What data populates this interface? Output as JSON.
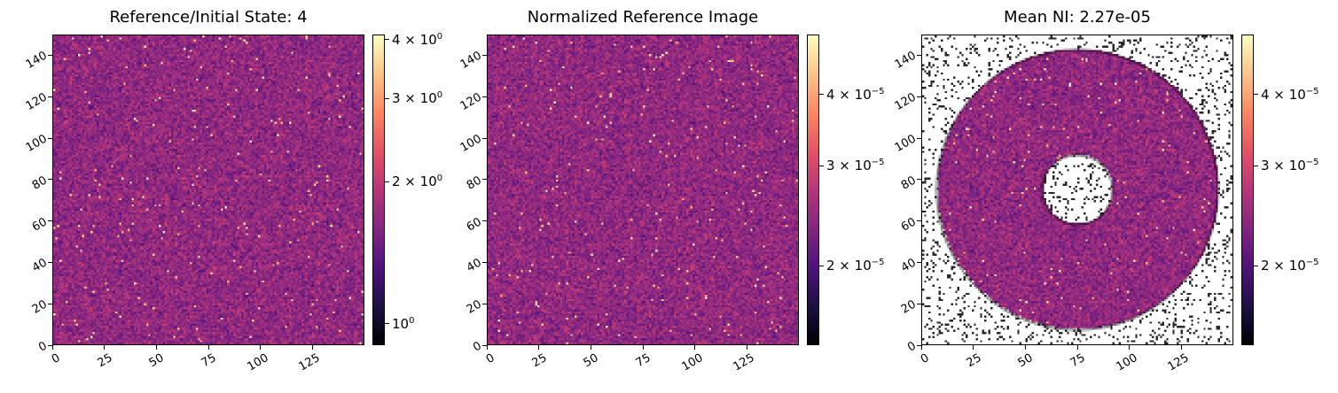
{
  "chart_data": [
    {
      "type": "heatmap",
      "title": "Reference/Initial State: 4",
      "x_ticks": [
        "0",
        "25",
        "50",
        "75",
        "100",
        "125"
      ],
      "y_ticks": [
        "0",
        "20",
        "40",
        "60",
        "80",
        "100",
        "120",
        "140"
      ],
      "xlim": [
        0,
        150
      ],
      "ylim": [
        0,
        150
      ],
      "colormap": "magma",
      "color_scale": "log",
      "colorbar": {
        "range": [
          0.9,
          4.1
        ],
        "ticks": [
          {
            "value": 1,
            "mantissa": "",
            "base": "10",
            "exp": "0"
          },
          {
            "value": 2,
            "mantissa": "2 × ",
            "base": "10",
            "exp": "0"
          },
          {
            "value": 3,
            "mantissa": "3 × ",
            "base": "10",
            "exp": "0"
          },
          {
            "value": 4,
            "mantissa": "4 × ",
            "base": "10",
            "exp": "0"
          }
        ]
      },
      "mask": "none"
    },
    {
      "type": "heatmap",
      "title": "Normalized Reference Image",
      "x_ticks": [
        "0",
        "25",
        "50",
        "75",
        "100",
        "125"
      ],
      "y_ticks": [
        "0",
        "20",
        "40",
        "60",
        "80",
        "100",
        "120",
        "140"
      ],
      "xlim": [
        0,
        150
      ],
      "ylim": [
        0,
        150
      ],
      "colormap": "magma",
      "color_scale": "log",
      "colorbar": {
        "range": [
          1.45e-05,
          5.1e-05
        ],
        "ticks": [
          {
            "value": 2e-05,
            "mantissa": "2 × ",
            "base": "10",
            "exp": "−5"
          },
          {
            "value": 3e-05,
            "mantissa": "3 × ",
            "base": "10",
            "exp": "−5"
          },
          {
            "value": 4e-05,
            "mantissa": "4 × ",
            "base": "10",
            "exp": "−5"
          }
        ]
      },
      "mask": "none"
    },
    {
      "type": "heatmap",
      "title": "Mean NI: 2.27e-05",
      "x_ticks": [
        "0",
        "25",
        "50",
        "75",
        "100",
        "125"
      ],
      "y_ticks": [
        "0",
        "20",
        "40",
        "60",
        "80",
        "100",
        "120",
        "140"
      ],
      "xlim": [
        0,
        150
      ],
      "ylim": [
        0,
        150
      ],
      "colormap": "magma",
      "color_scale": "log",
      "colorbar": {
        "range": [
          1.45e-05,
          5.1e-05
        ],
        "ticks": [
          {
            "value": 2e-05,
            "mantissa": "2 × ",
            "base": "10",
            "exp": "−5"
          },
          {
            "value": 3e-05,
            "mantissa": "3 × ",
            "base": "10",
            "exp": "−5"
          },
          {
            "value": 4e-05,
            "mantissa": "4 × ",
            "base": "10",
            "exp": "−5"
          }
        ]
      },
      "mask": {
        "shape": "annulus",
        "center": [
          75,
          75
        ],
        "inner_radius": 17,
        "outer_radius": 68
      }
    }
  ]
}
